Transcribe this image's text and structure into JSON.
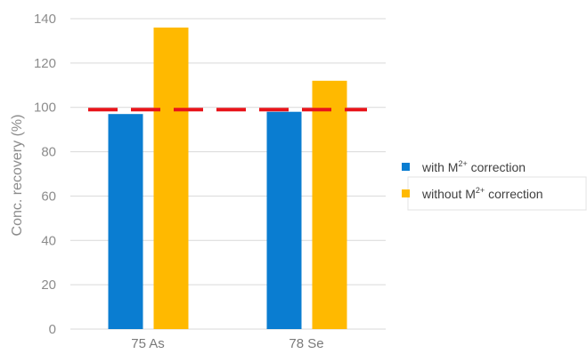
{
  "chart_data": {
    "type": "bar",
    "title": "",
    "xlabel": "",
    "ylabel": "Conc. recovery (%)",
    "categories": [
      "75 As",
      "78 Se"
    ],
    "series": [
      {
        "name": "with M2+ correction",
        "color": "#0a7dd1",
        "values": [
          97,
          98
        ]
      },
      {
        "name": "without M2+ correction",
        "color": "#ffb900",
        "values": [
          136,
          112
        ]
      }
    ],
    "ylim": [
      0,
      140
    ],
    "yticks": [
      0,
      20,
      40,
      60,
      80,
      100,
      120,
      140
    ],
    "grid": true,
    "legend": {
      "position": "right",
      "entries": [
        {
          "pre": "with M",
          "sup": "2+",
          "post": " correction"
        },
        {
          "pre": "without M",
          "sup": "2+",
          "post": " correction"
        }
      ]
    },
    "reference_line": {
      "value": 99,
      "color": "#e8141a",
      "style": "dashed"
    },
    "grid_color": "#d9d9d9"
  }
}
